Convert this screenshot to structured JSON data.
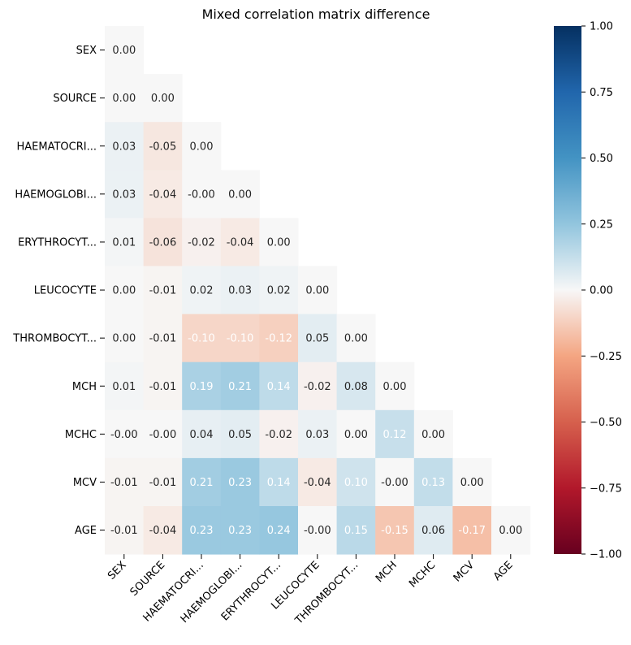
{
  "chart_data": {
    "type": "heatmap",
    "title": "Mixed correlation matrix difference",
    "xlabel": "",
    "ylabel": "",
    "labels": [
      "SEX",
      "SOURCE",
      "HAEMATOCRI...",
      "HAEMOGLOBI...",
      "ERYTHROCYT...",
      "LEUCOCYTE",
      "THROMBOCYT...",
      "MCH",
      "MCHC",
      "MCV",
      "AGE"
    ],
    "matrix": [
      [
        0.0
      ],
      [
        0.0,
        0.0
      ],
      [
        0.03,
        -0.05,
        0.0
      ],
      [
        0.03,
        -0.04,
        -0.0,
        0.0
      ],
      [
        0.01,
        -0.06,
        -0.02,
        -0.04,
        0.0
      ],
      [
        0.0,
        -0.01,
        0.02,
        0.03,
        0.02,
        0.0
      ],
      [
        0.0,
        -0.01,
        -0.1,
        -0.1,
        -0.12,
        0.05,
        0.0
      ],
      [
        0.01,
        -0.01,
        0.19,
        0.21,
        0.14,
        -0.02,
        0.08,
        0.0
      ],
      [
        -0.0,
        -0.0,
        0.04,
        0.05,
        -0.02,
        0.03,
        0.0,
        0.12,
        0.0
      ],
      [
        -0.01,
        -0.01,
        0.21,
        0.23,
        0.14,
        -0.04,
        0.1,
        -0.0,
        0.13,
        0.0
      ],
      [
        -0.01,
        -0.04,
        0.23,
        0.23,
        0.24,
        -0.0,
        0.15,
        -0.15,
        0.06,
        -0.17,
        0.0
      ]
    ],
    "display_labels": [
      [
        "0.00"
      ],
      [
        "0.00",
        "0.00"
      ],
      [
        "0.03",
        "-0.05",
        "0.00"
      ],
      [
        "0.03",
        "-0.04",
        "-0.00",
        "0.00"
      ],
      [
        "0.01",
        "-0.06",
        "-0.02",
        "-0.04",
        "0.00"
      ],
      [
        "0.00",
        "-0.01",
        "0.02",
        "0.03",
        "0.02",
        "0.00"
      ],
      [
        "0.00",
        "-0.01",
        "-0.10",
        "-0.10",
        "-0.12",
        "0.05",
        "0.00"
      ],
      [
        "0.01",
        "-0.01",
        "0.19",
        "0.21",
        "0.14",
        "-0.02",
        "0.08",
        "0.00"
      ],
      [
        "-0.00",
        "-0.00",
        "0.04",
        "0.05",
        "-0.02",
        "0.03",
        "0.00",
        "0.12",
        "0.00"
      ],
      [
        "-0.01",
        "-0.01",
        "0.21",
        "0.23",
        "0.14",
        "-0.04",
        "0.10",
        "-0.00",
        "0.13",
        "0.00"
      ],
      [
        "-0.01",
        "-0.04",
        "0.23",
        "0.23",
        "0.24",
        "-0.00",
        "0.15",
        "-0.15",
        "0.06",
        "-0.17",
        "0.00"
      ]
    ],
    "colorbar": {
      "colormap": "RdBu",
      "range": [
        -1.0,
        1.0
      ],
      "ticks": [
        "1.00",
        "0.75",
        "0.50",
        "0.25",
        "0.00",
        "−0.25",
        "−0.50",
        "−0.75",
        "−1.00"
      ],
      "tick_values": [
        1.0,
        0.75,
        0.5,
        0.25,
        0.0,
        -0.25,
        -0.5,
        -0.75,
        -1.0
      ]
    },
    "grid": false,
    "legend": "colorbar-right"
  }
}
